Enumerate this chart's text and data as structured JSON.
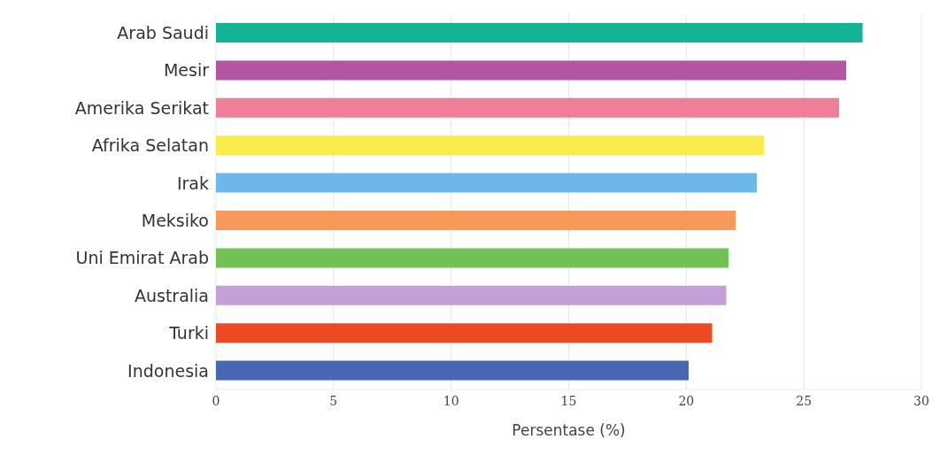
{
  "chart_data": {
    "type": "bar",
    "orientation": "horizontal",
    "xlabel": "Persentase (%)",
    "categories": [
      "Arab Saudi",
      "Mesir",
      "Amerika Serikat",
      "Afrika Selatan",
      "Irak",
      "Meksiko",
      "Uni Emirat Arab",
      "Australia",
      "Turki",
      "Indonesia"
    ],
    "values": [
      27.5,
      26.8,
      26.5,
      23.3,
      23.0,
      22.1,
      21.8,
      21.7,
      21.1,
      20.1
    ],
    "colors": [
      "#13b394",
      "#b256a4",
      "#ef7f98",
      "#fbec4b",
      "#6cb8ea",
      "#f7995b",
      "#71c253",
      "#c3a0d8",
      "#eb4a22",
      "#4767b2"
    ],
    "xlim": [
      0,
      30
    ],
    "xticks": [
      0,
      5,
      10,
      15,
      20,
      25,
      30
    ],
    "grid": "x"
  }
}
